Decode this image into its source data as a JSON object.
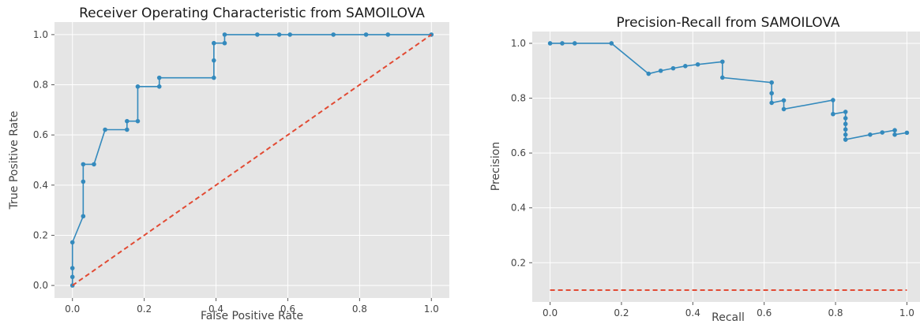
{
  "chart_data": [
    {
      "type": "line",
      "title": "Receiver Operating Characteristic from SAMOILOVA",
      "xlabel": "False Positive Rate",
      "ylabel": "True Positive Rate",
      "xlim": [
        -0.05,
        1.05
      ],
      "ylim": [
        -0.05,
        1.05
      ],
      "xticks": [
        "0.0",
        "0.2",
        "0.4",
        "0.6",
        "0.8",
        "1.0"
      ],
      "yticks": [
        "0.0",
        "0.2",
        "0.4",
        "0.6",
        "0.8",
        "1.0"
      ],
      "grid": true,
      "series": [
        {
          "color": "#348ABD",
          "style": "solid-markers",
          "x": [
            0.0,
            0.0,
            0.0,
            0.0,
            0.03,
            0.03,
            0.03,
            0.06,
            0.091,
            0.152,
            0.152,
            0.182,
            0.182,
            0.242,
            0.242,
            0.394,
            0.394,
            0.394,
            0.424,
            0.424,
            0.515,
            0.576,
            0.606,
            0.727,
            0.818,
            0.879,
            1.0
          ],
          "y": [
            0.0,
            0.034,
            0.069,
            0.172,
            0.276,
            0.414,
            0.483,
            0.483,
            0.621,
            0.621,
            0.655,
            0.655,
            0.793,
            0.793,
            0.828,
            0.828,
            0.897,
            0.966,
            0.966,
            1.0,
            1.0,
            1.0,
            1.0,
            1.0,
            1.0,
            1.0,
            1.0
          ]
        },
        {
          "color": "#E24A33",
          "style": "dashed",
          "x": [
            0,
            1
          ],
          "y": [
            0,
            1
          ]
        }
      ]
    },
    {
      "type": "line",
      "title": "Precision-Recall from SAMOILOVA",
      "xlabel": "Recall",
      "ylabel": "Precision",
      "xlim": [
        -0.05,
        1.05
      ],
      "ylim": [
        0.057,
        1.043
      ],
      "xticks": [
        "0.0",
        "0.2",
        "0.4",
        "0.6",
        "0.8",
        "1.0"
      ],
      "yticks": [
        "0.2",
        "0.4",
        "0.6",
        "0.8",
        "1.0"
      ],
      "grid": true,
      "series": [
        {
          "color": "#348ABD",
          "style": "solid-markers",
          "x": [
            0.0,
            0.034,
            0.069,
            0.172,
            0.276,
            0.31,
            0.345,
            0.379,
            0.414,
            0.483,
            0.483,
            0.621,
            0.621,
            0.621,
            0.655,
            0.655,
            0.793,
            0.793,
            0.828,
            0.828,
            0.828,
            0.828,
            0.828,
            0.828,
            0.828,
            0.897,
            0.931,
            0.966,
            0.966,
            1.0
          ],
          "y": [
            1.0,
            1.0,
            1.0,
            1.0,
            0.889,
            0.9,
            0.909,
            0.917,
            0.923,
            0.933,
            0.875,
            0.857,
            0.818,
            0.783,
            0.792,
            0.76,
            0.793,
            0.742,
            0.75,
            0.727,
            0.706,
            0.686,
            0.667,
            0.649,
            0.649,
            0.667,
            0.675,
            0.683,
            0.667,
            0.674
          ]
        },
        {
          "color": "#E24A33",
          "style": "dashed",
          "x": [
            0,
            1
          ],
          "y": [
            0.1,
            0.1
          ]
        }
      ]
    }
  ]
}
